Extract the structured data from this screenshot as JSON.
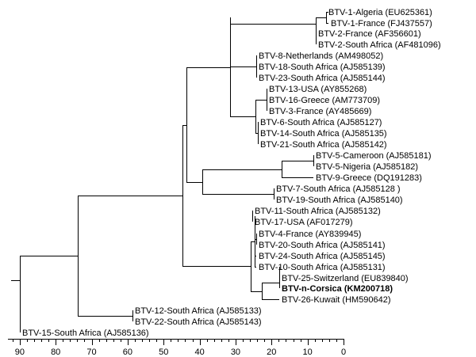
{
  "tree": {
    "type": "phylogenetic-tree",
    "leaves": [
      {
        "id": "l1",
        "label": "BTV-1-Algeria (EU625361)"
      },
      {
        "id": "l2",
        "label": "BTV-1-France (FJ437557)"
      },
      {
        "id": "l3",
        "label": "BTV-2-France (AF356601)"
      },
      {
        "id": "l4",
        "label": "BTV-2-South Africa (AF481096)"
      },
      {
        "id": "l5",
        "label": "BTV-8-Netherlands (AM498052)"
      },
      {
        "id": "l6",
        "label": "BTV-18-South Africa (AJ585139)"
      },
      {
        "id": "l7",
        "label": "BTV-23-South Africa (AJ585144)"
      },
      {
        "id": "l8",
        "label": "BTV-13-USA (AY855268)"
      },
      {
        "id": "l9",
        "label": "BTV-16-Greece (AM773709)"
      },
      {
        "id": "l10",
        "label": "BTV-3-France (AY485669)"
      },
      {
        "id": "l11",
        "label": "BTV-6-South Africa (AJ585127)"
      },
      {
        "id": "l12",
        "label": "BTV-14-South Africa (AJ585135)"
      },
      {
        "id": "l13",
        "label": "BTV-21-South Africa (AJ585142)"
      },
      {
        "id": "l14",
        "label": "BTV-5-Cameroon (AJ585181)"
      },
      {
        "id": "l15",
        "label": "BTV-5-Nigeria (AJ585182)"
      },
      {
        "id": "l16",
        "label": "BTV-9-Greece (DQ191283)"
      },
      {
        "id": "l17",
        "label": "BTV-7-South Africa (AJ585128 )"
      },
      {
        "id": "l18",
        "label": "BTV-19-South Africa (AJ585140)"
      },
      {
        "id": "l19",
        "label": "BTV-11-South Africa (AJ585132)"
      },
      {
        "id": "l20",
        "label": "BTV-17-USA (AF017279)"
      },
      {
        "id": "l21",
        "label": "BTV-4-France (AY839945)"
      },
      {
        "id": "l22",
        "label": "BTV-20-South Africa (AJ585141)"
      },
      {
        "id": "l23",
        "label": "BTV-24-South Africa (AJ585145)"
      },
      {
        "id": "l24",
        "label": "BTV-10-South Africa (AJ585131)"
      },
      {
        "id": "l25",
        "label": "BTV-25-Switzerland (EU839840)"
      },
      {
        "id": "l26",
        "label": "BTV-n-Corsica (KM200718)",
        "bold": true
      },
      {
        "id": "l27",
        "label": "BTV-26-Kuwait (HM590642)"
      },
      {
        "id": "l28",
        "label": "BTV-12-South Africa (AJ585133)"
      },
      {
        "id": "l29",
        "label": "BTV-22-South Africa (AJ585143)"
      },
      {
        "id": "l30",
        "label": "BTV-15-South Africa (AJ585136)"
      }
    ],
    "axis": {
      "ticks": [
        "90",
        "80",
        "70",
        "60",
        "50",
        "40",
        "30",
        "20",
        "10",
        "0"
      ],
      "min": 0,
      "max": 90
    }
  }
}
